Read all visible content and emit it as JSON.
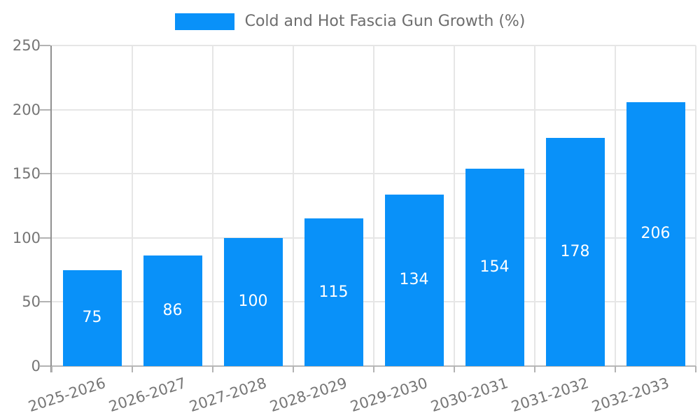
{
  "chart_data": {
    "type": "bar",
    "title": "Cold and Hot Fascia Gun Growth (%)",
    "legend_entries": [
      "Cold and Hot Fascia Gun Growth (%)"
    ],
    "legend_position": "top-center",
    "categories": [
      "2025-2026",
      "2026-2027",
      "2027-2028",
      "2028-2029",
      "2029-2030",
      "2030-2031",
      "2031-2032",
      "2032-2033"
    ],
    "values": [
      75,
      86,
      100,
      115,
      134,
      154,
      178,
      206
    ],
    "xlabel": "",
    "ylabel": "",
    "ylim": [
      0,
      250
    ],
    "yticks": [
      0,
      50,
      100,
      150,
      200,
      250
    ],
    "grid": true,
    "value_labels_shown": true,
    "colors": {
      "bar": "#0991F9",
      "value_label_text": "#FFFFFF",
      "axis_text": "#757575",
      "legend_text": "#6D6D6D",
      "gridline": "#E6E6E6",
      "y_axis_line": "#909090",
      "x_axis_line": "#B7B7B7",
      "tick": "#B3B3B3",
      "background": "#FFFFFF"
    }
  }
}
